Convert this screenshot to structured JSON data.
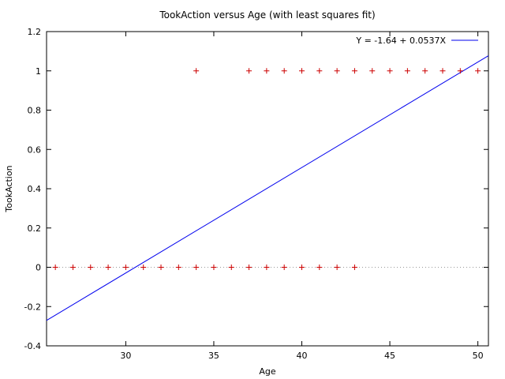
{
  "chart_data": {
    "type": "scatter",
    "title": "TookAction versus Age (with least squares fit)",
    "xlabel": "Age",
    "ylabel": "TookAction",
    "xlim": [
      25.5,
      50.6
    ],
    "ylim": [
      -0.4,
      1.2
    ],
    "xticks": [
      30,
      35,
      40,
      45,
      50
    ],
    "yticks": [
      -0.4,
      -0.2,
      0,
      0.2,
      0.4,
      0.6,
      0.8,
      1,
      1.2
    ],
    "legend": {
      "position": "top-right",
      "label": "Y = -1.64 + 0.0537X"
    },
    "colors": {
      "points": "#cc0000",
      "fit": "#0000ee",
      "zero_line": "#999999"
    },
    "series": [
      {
        "kind": "points",
        "marker": "plus",
        "x": [
          26,
          27,
          28,
          29,
          30,
          31,
          32,
          33,
          34,
          35,
          36,
          37,
          38,
          39,
          40,
          41,
          42,
          43,
          34,
          37,
          38,
          39,
          40,
          41,
          42,
          43,
          44,
          45,
          46,
          47,
          48,
          49,
          50
        ],
        "y": [
          0,
          0,
          0,
          0,
          0,
          0,
          0,
          0,
          0,
          0,
          0,
          0,
          0,
          0,
          0,
          0,
          0,
          0,
          1,
          1,
          1,
          1,
          1,
          1,
          1,
          1,
          1,
          1,
          1,
          1,
          1,
          1,
          1
        ]
      },
      {
        "kind": "line",
        "intercept": -1.64,
        "slope": 0.0537
      }
    ]
  }
}
